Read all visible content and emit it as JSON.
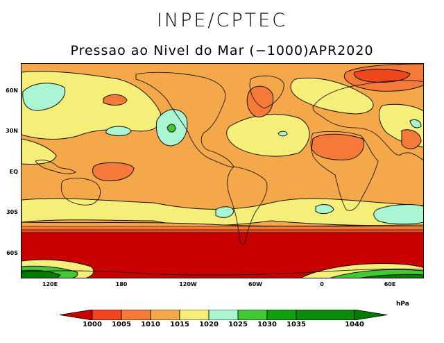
{
  "header": {
    "agency": "INPE/CPTEC",
    "subtitle": "Pressao ao Nivel do Mar (−1000)APR2020"
  },
  "axes": {
    "lat_labels": [
      "60N",
      "30N",
      "EQ",
      "30S",
      "60S"
    ],
    "lon_labels": [
      "120E",
      "180",
      "120W",
      "60W",
      "0",
      "60E"
    ]
  },
  "legend": {
    "unit": "hPa",
    "levels": [
      "1000",
      "1005",
      "1010",
      "1015",
      "1020",
      "1025",
      "1030",
      "1035",
      "1040"
    ],
    "colors": [
      "#c80000",
      "#f0461e",
      "#f57a3a",
      "#f5a84a",
      "#f5ee79",
      "#aaf5d2",
      "#41c832",
      "#0fa00f",
      "#007d00"
    ],
    "low_arrow_color": "#c80000",
    "high_arrow_color": "#007d00"
  },
  "colors": {
    "land_outline": "#000000",
    "contour": "#111111",
    "background": "#ffffff"
  }
}
